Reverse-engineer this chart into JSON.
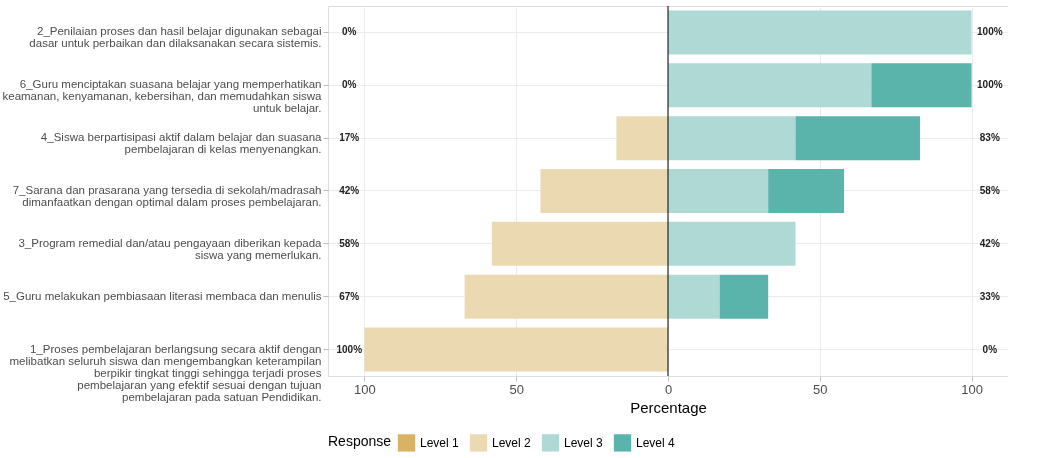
{
  "chart_data": {
    "type": "bar",
    "orientation": "horizontal",
    "stacked": true,
    "categories": [
      "2_Penilaian proses dan hasil belajar digunakan sebagai dasar untuk perbaikan dan dilaksanakan secara sistemis.",
      "6_Guru menciptakan suasana belajar yang memperhatikan keamanan, kenyamanan, kebersihan, dan memudahkan siswa untuk belajar.",
      "4_Siswa berpartisipasi aktif dalam belajar dan suasana pembelajaran di kelas menyenangkan.",
      "7_Sarana dan prasarana yang tersedia di sekolah/madrasah dimanfaatkan dengan optimal dalam proses pembelajaran.",
      "3_Program remedial dan/atau pengayaan diberikan kepada siswa yang memerlukan.",
      "5_Guru melakukan pembiasaan literasi membaca dan menulis",
      "1_Proses pembelajaran berlangsung secara aktif dengan melibatkan seluruh siswa dan mengembangkan keterampilan berpikir tingkat tinggi sehingga terjadi proses pembelajaran yang efektif sesuai dengan tujuan pembelajaran pada satuan Pendidikan."
    ],
    "series": [
      {
        "name": "Level 1",
        "color": "#d8b365",
        "values": [
          0,
          0,
          0,
          0,
          0,
          0,
          0
        ]
      },
      {
        "name": "Level 2",
        "color": "#ebd9b2",
        "values": [
          0,
          0,
          -17,
          -42,
          -58,
          -67,
          -100
        ]
      },
      {
        "name": "Level 3",
        "color": "#aed9d5",
        "values": [
          100,
          67,
          42,
          33,
          42,
          17,
          0
        ]
      },
      {
        "name": "Level 4",
        "color": "#5ab4ac",
        "values": [
          0,
          33,
          41,
          25,
          0,
          16,
          0
        ]
      }
    ],
    "xlabel": "Percentage",
    "legend_title": "Response",
    "legend": "bottom",
    "grid": true,
    "xlim": [
      -112,
      112
    ],
    "xticks": [
      {
        "value": -100,
        "label": "100"
      },
      {
        "value": -50,
        "label": "50"
      },
      0,
      50,
      100
    ],
    "ref_lines": [
      {
        "axis": "x",
        "value": 0,
        "color": "#000000"
      }
    ],
    "annotations": [
      "0%",
      "100%",
      "0%",
      "100%",
      "17%",
      "83%",
      "42%",
      "58%",
      "58%",
      "42%",
      "67%",
      "33%",
      "100%",
      "0%"
    ]
  }
}
